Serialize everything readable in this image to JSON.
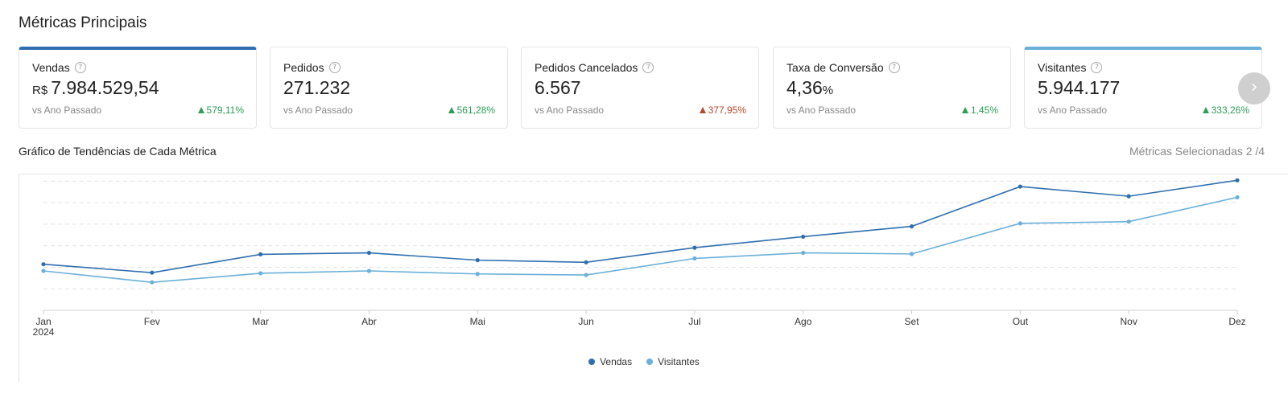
{
  "header": {
    "title": "Métricas Principais"
  },
  "metrics": [
    {
      "label": "Vendas",
      "currency": "R$",
      "value": "7.984.529,54",
      "compare": "vs Ano Passado",
      "change": "579,11%",
      "direction": "up",
      "selected": true,
      "accent": "#2f6fb0"
    },
    {
      "label": "Pedidos",
      "value": "271.232",
      "compare": "vs Ano Passado",
      "change": "561,28%",
      "direction": "up",
      "selected": false
    },
    {
      "label": "Pedidos Cancelados",
      "value": "6.567",
      "compare": "vs Ano Passado",
      "change": "377,95%",
      "direction": "down",
      "selected": false
    },
    {
      "label": "Taxa de Conversão",
      "value": "4,36",
      "unit": "%",
      "compare": "vs Ano Passado",
      "change": "1,45%",
      "direction": "up",
      "selected": false
    },
    {
      "label": "Visitantes",
      "value": "5.944.177",
      "compare": "vs Ano Passado",
      "change": "333,26%",
      "direction": "up",
      "selected": true,
      "accent": "#6ab0da"
    }
  ],
  "icons": {
    "help": "question-circle-icon",
    "next": "chevron-right-icon",
    "up": "triangle-up-icon"
  },
  "trend": {
    "title": "Gráfico de Tendências de Cada Métrica",
    "selected_count": "Métricas Selecionadas 2 /4"
  },
  "chart_data": {
    "type": "line",
    "categories": [
      "Jan",
      "Fev",
      "Mar",
      "Abr",
      "Mai",
      "Jun",
      "Jul",
      "Ago",
      "Set",
      "Out",
      "Nov",
      "Dez"
    ],
    "year_label": "2024",
    "series": [
      {
        "name": "Vendas",
        "color": "#2f6fb0",
        "values": [
          21.4,
          17.5,
          26.0,
          26.7,
          23.3,
          22.3,
          29.1,
          34.2,
          39.0,
          57.5,
          53.0,
          60.4
        ]
      },
      {
        "name": "Visitantes",
        "color": "#6ab0da",
        "values": [
          18.3,
          13.0,
          17.2,
          18.3,
          16.9,
          16.4,
          24.1,
          26.7,
          26.2,
          40.4,
          41.2,
          52.5
        ]
      }
    ],
    "ylim": [
      0,
      65
    ],
    "grid": true,
    "legend": "bottom-center"
  }
}
